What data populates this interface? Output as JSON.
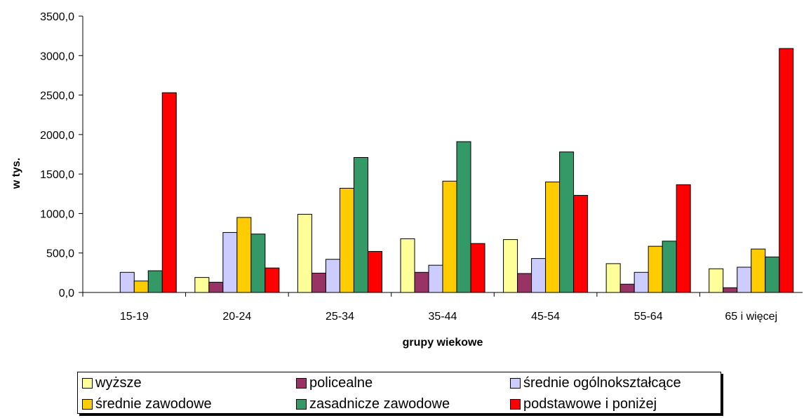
{
  "chart_data": {
    "type": "bar",
    "title": "",
    "xlabel": "grupy wiekowe",
    "ylabel": "w tys.",
    "ylim": [
      0,
      3500
    ],
    "yticks": [
      "0,0",
      "500,0",
      "1000,0",
      "1500,0",
      "2000,0",
      "2500,0",
      "3000,0",
      "3500,0"
    ],
    "grid": false,
    "legend_position": "bottom",
    "categories": [
      "15-19",
      "20-24",
      "25-34",
      "35-44",
      "45-54",
      "55-64",
      "65 i więcej"
    ],
    "series": [
      {
        "name": "wyższe",
        "color": "#FFFF99",
        "values": [
          0,
          190,
          990,
          680,
          670,
          365,
          300
        ]
      },
      {
        "name": "policealne",
        "color": "#993366",
        "values": [
          0,
          130,
          245,
          255,
          240,
          105,
          60
        ]
      },
      {
        "name": "średnie ogólnokształcące",
        "color": "#CCCCFF",
        "values": [
          255,
          760,
          420,
          345,
          430,
          255,
          320
        ]
      },
      {
        "name": "średnie zawodowe",
        "color": "#FFCC00",
        "values": [
          145,
          950,
          1320,
          1410,
          1400,
          585,
          550
        ]
      },
      {
        "name": "zasadnicze zawodowe",
        "color": "#339966",
        "values": [
          275,
          740,
          1710,
          1910,
          1780,
          650,
          450
        ]
      },
      {
        "name": "podstawowe i poniżej",
        "color": "#FF0000",
        "values": [
          2530,
          310,
          520,
          620,
          1230,
          1365,
          3090
        ]
      }
    ]
  }
}
